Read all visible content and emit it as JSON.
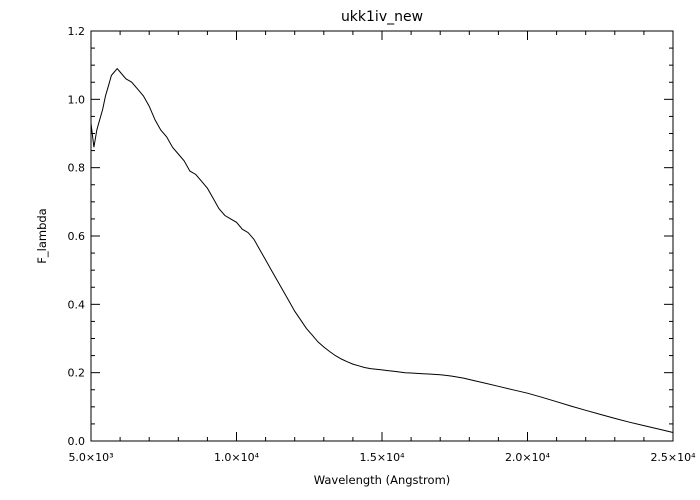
{
  "chart_data": {
    "type": "line",
    "title": "ukk1iv_new",
    "xlabel": "Wavelength (Angstrom)",
    "ylabel": "F_lambda",
    "xlim": [
      5000,
      25000
    ],
    "ylim": [
      0.0,
      1.2
    ],
    "grid": false,
    "legend": "none",
    "line_color": "#000000",
    "x_ticks": [
      {
        "value": 5000,
        "label": "5.0×10³"
      },
      {
        "value": 10000,
        "label": "1.0×10⁴"
      },
      {
        "value": 15000,
        "label": "1.5×10⁴"
      },
      {
        "value": 20000,
        "label": "2.0×10⁴"
      },
      {
        "value": 25000,
        "label": "2.5×10⁴"
      }
    ],
    "y_ticks": [
      {
        "value": 0.0,
        "label": "0.0"
      },
      {
        "value": 0.2,
        "label": "0.2"
      },
      {
        "value": 0.4,
        "label": "0.4"
      },
      {
        "value": 0.6,
        "label": "0.6"
      },
      {
        "value": 0.8,
        "label": "0.8"
      },
      {
        "value": 1.0,
        "label": "1.0"
      },
      {
        "value": 1.2,
        "label": "1.2"
      }
    ],
    "series": [
      {
        "x": [
          5000,
          5100,
          5200,
          5300,
          5400,
          5500,
          5600,
          5700,
          5800,
          5900,
          6000,
          6200,
          6400,
          6600,
          6800,
          7000,
          7200,
          7400,
          7600,
          7800,
          8000,
          8200,
          8400,
          8600,
          8800,
          9000,
          9200,
          9400,
          9600,
          9800,
          10000,
          10200,
          10400,
          10600,
          10800,
          11000,
          11200,
          11400,
          11600,
          11800,
          12000,
          12200,
          12400,
          12600,
          12800,
          13000,
          13200,
          13400,
          13600,
          13800,
          14000,
          14200,
          14400,
          14600,
          14800,
          15000,
          15200,
          15400,
          15600,
          15800,
          16000,
          16200,
          16400,
          16600,
          16800,
          17000,
          17200,
          17400,
          17600,
          17800,
          18000,
          18500,
          19000,
          19500,
          20000,
          20500,
          21000,
          21500,
          22000,
          22500,
          23000,
          23500,
          24000,
          24500,
          25000
        ],
        "y": [
          0.93,
          0.86,
          0.91,
          0.94,
          0.97,
          1.01,
          1.04,
          1.07,
          1.08,
          1.09,
          1.08,
          1.06,
          1.05,
          1.03,
          1.01,
          0.98,
          0.94,
          0.91,
          0.89,
          0.86,
          0.84,
          0.82,
          0.79,
          0.78,
          0.76,
          0.74,
          0.71,
          0.68,
          0.66,
          0.65,
          0.64,
          0.62,
          0.61,
          0.59,
          0.56,
          0.53,
          0.5,
          0.47,
          0.44,
          0.41,
          0.38,
          0.355,
          0.33,
          0.31,
          0.29,
          0.275,
          0.262,
          0.25,
          0.24,
          0.232,
          0.225,
          0.22,
          0.215,
          0.212,
          0.21,
          0.208,
          0.206,
          0.204,
          0.202,
          0.2,
          0.199,
          0.198,
          0.197,
          0.196,
          0.195,
          0.194,
          0.192,
          0.19,
          0.187,
          0.184,
          0.18,
          0.17,
          0.16,
          0.15,
          0.14,
          0.128,
          0.115,
          0.102,
          0.09,
          0.078,
          0.066,
          0.055,
          0.045,
          0.035,
          0.025
        ]
      }
    ]
  }
}
